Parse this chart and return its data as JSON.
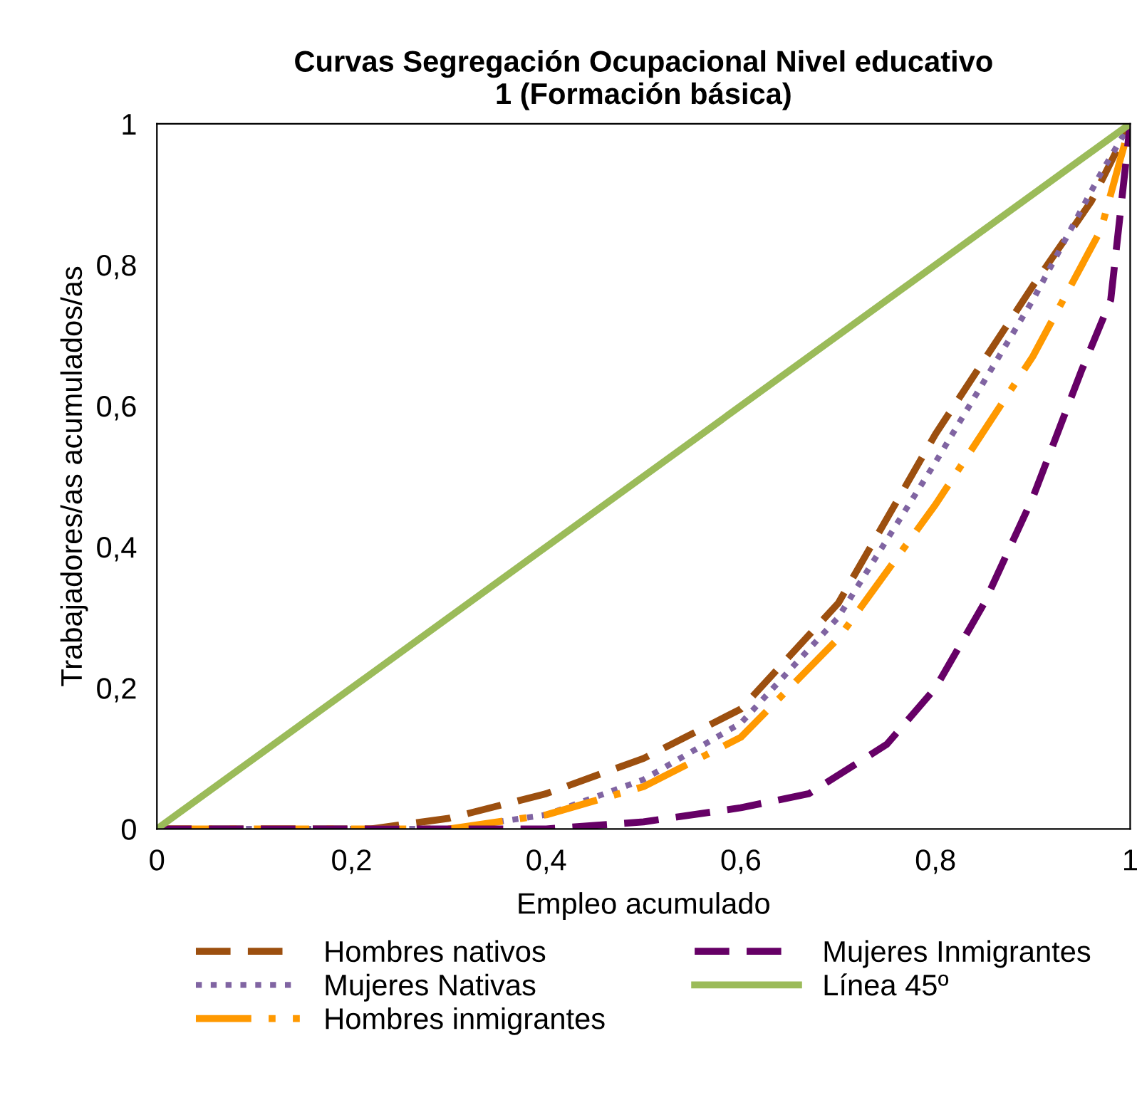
{
  "chart_data": {
    "type": "line",
    "title": "Curvas Segregación Ocupacional Nivel educativo\n1 (Formación básica)",
    "xlabel": "Empleo acumulado",
    "ylabel": "Trabajadores/as acumulados/as",
    "xlim": [
      0,
      1
    ],
    "ylim": [
      0,
      1
    ],
    "xticks": [
      0,
      {
        "value": 0.2,
        "label": "0,2"
      },
      {
        "value": 0.4,
        "label": "0,4"
      },
      {
        "value": 0.6,
        "label": "0,6"
      },
      {
        "value": 0.8,
        "label": "0,8"
      },
      1
    ],
    "yticks": [
      0,
      {
        "value": 0.2,
        "label": "0,2"
      },
      {
        "value": 0.4,
        "label": "0,4"
      },
      {
        "value": 0.6,
        "label": "0,6"
      },
      {
        "value": 0.8,
        "label": "0,8"
      },
      1
    ],
    "grid": false,
    "legend": "bottom",
    "marker": "none",
    "series": [
      {
        "name": "Hombres nativos",
        "color": "#9c4f0f",
        "line_style": "dashed",
        "x": [
          0,
          0.1,
          0.22,
          0.3,
          0.4,
          0.5,
          0.6,
          0.7,
          0.8,
          0.9,
          0.96,
          1
        ],
        "values": [
          0,
          0,
          0,
          0.015,
          0.05,
          0.1,
          0.17,
          0.32,
          0.56,
          0.77,
          0.89,
          1
        ]
      },
      {
        "name": "Mujeres Nativas",
        "color": "#8064a2",
        "line_style": "dotted",
        "x": [
          0,
          0.1,
          0.3,
          0.4,
          0.5,
          0.6,
          0.7,
          0.8,
          0.9,
          0.97,
          1
        ],
        "values": [
          0,
          0,
          0,
          0.02,
          0.07,
          0.15,
          0.3,
          0.52,
          0.75,
          0.93,
          1
        ]
      },
      {
        "name": "Hombres inmigrantes",
        "color": "#ff9900",
        "line_style": "dashdot",
        "x": [
          0,
          0.1,
          0.3,
          0.4,
          0.5,
          0.6,
          0.7,
          0.8,
          0.9,
          0.97,
          1
        ],
        "values": [
          0,
          0,
          0,
          0.02,
          0.06,
          0.13,
          0.27,
          0.46,
          0.67,
          0.85,
          1
        ]
      },
      {
        "name": "Mujeres Inmigrantes",
        "color": "#660066",
        "line_style": "dashed",
        "x": [
          0,
          0.1,
          0.4,
          0.5,
          0.6,
          0.67,
          0.75,
          0.8,
          0.85,
          0.9,
          0.95,
          0.98,
          1
        ],
        "values": [
          0,
          0,
          0,
          0.01,
          0.03,
          0.05,
          0.12,
          0.2,
          0.32,
          0.47,
          0.65,
          0.75,
          1
        ]
      },
      {
        "name": "Línea 45º",
        "color": "#9bbb59",
        "line_style": "solid",
        "x": [
          0,
          1
        ],
        "values": [
          0,
          1
        ]
      }
    ]
  }
}
